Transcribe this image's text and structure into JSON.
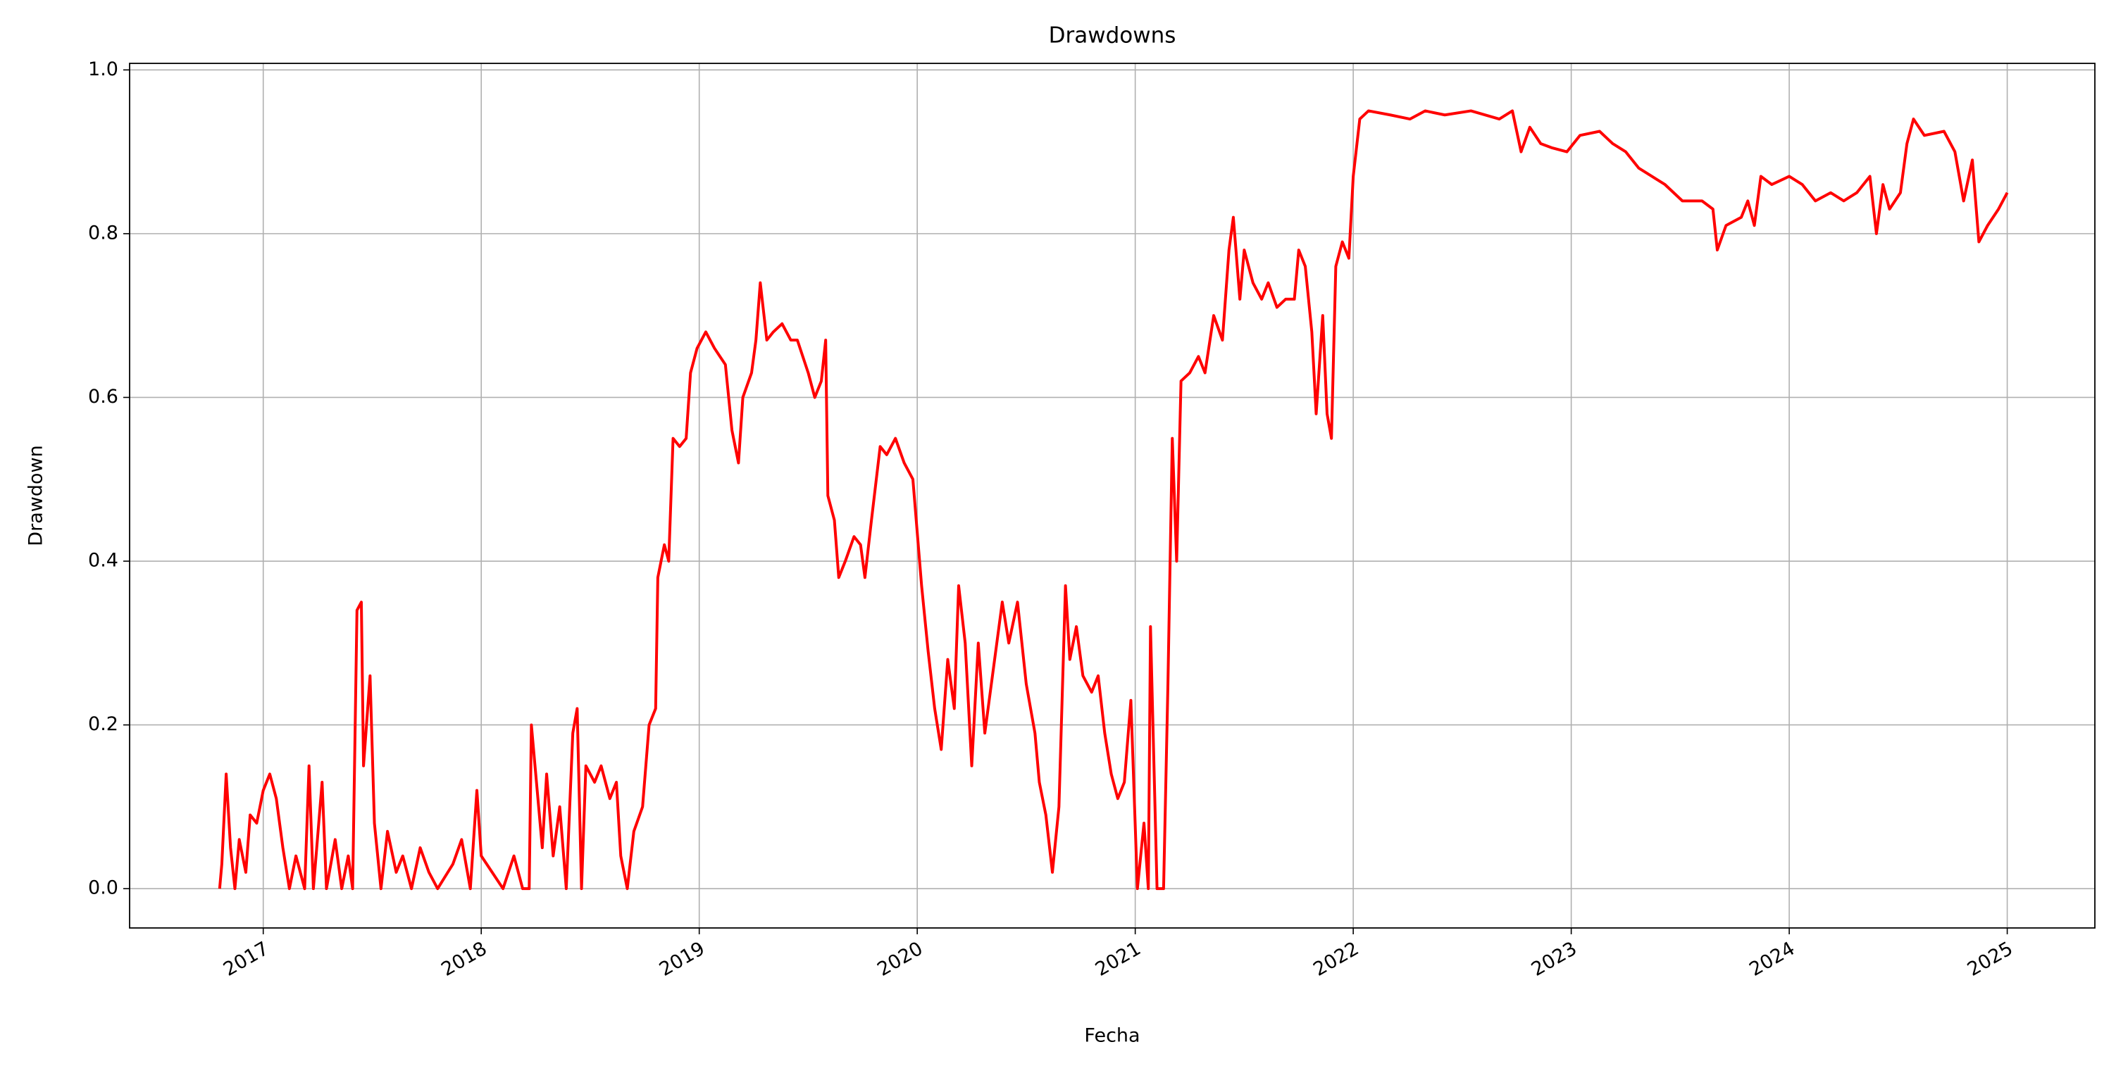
{
  "chart_data": {
    "type": "line",
    "title": "Drawdowns",
    "x_label": "Fecha",
    "y_label": "Drawdown",
    "color": "#ff0000",
    "grid": true,
    "xlim": [
      2016.387,
      2025.402
    ],
    "xticks": [
      2017,
      2018,
      2019,
      2020,
      2021,
      2022,
      2023,
      2024,
      2025
    ],
    "ylim": [
      -0.048,
      1.008
    ],
    "yticks": [
      {
        "value": 0,
        "label": "0.0"
      },
      0.2,
      0.4,
      0.6,
      0.8,
      {
        "value": 1,
        "label": "1.0"
      }
    ],
    "x": [
      2016.8,
      2016.81,
      2016.83,
      2016.85,
      2016.87,
      2016.89,
      2016.92,
      2016.94,
      2016.97,
      2017.0,
      2017.03,
      2017.06,
      2017.09,
      2017.12,
      2017.15,
      2017.19,
      2017.21,
      2017.23,
      2017.27,
      2017.29,
      2017.33,
      2017.36,
      2017.39,
      2017.41,
      2017.43,
      2017.45,
      2017.46,
      2017.49,
      2017.51,
      2017.54,
      2017.57,
      2017.61,
      2017.64,
      2017.68,
      2017.72,
      2017.76,
      2017.8,
      2017.87,
      2017.91,
      2017.95,
      2017.98,
      2018.0,
      2018.05,
      2018.1,
      2018.15,
      2018.19,
      2018.22,
      2018.23,
      2018.25,
      2018.28,
      2018.3,
      2018.33,
      2018.36,
      2018.39,
      2018.42,
      2018.44,
      2018.46,
      2018.48,
      2018.52,
      2018.55,
      2018.59,
      2018.62,
      2018.64,
      2018.67,
      2018.7,
      2018.74,
      2018.77,
      2018.8,
      2018.81,
      2018.84,
      2018.86,
      2018.88,
      2018.91,
      2018.94,
      2018.96,
      2018.99,
      2019.03,
      2019.07,
      2019.12,
      2019.15,
      2019.18,
      2019.2,
      2019.24,
      2019.26,
      2019.28,
      2019.31,
      2019.34,
      2019.38,
      2019.42,
      2019.45,
      2019.5,
      2019.53,
      2019.56,
      2019.58,
      2019.59,
      2019.62,
      2019.64,
      2019.67,
      2019.71,
      2019.74,
      2019.76,
      2019.79,
      2019.83,
      2019.86,
      2019.9,
      2019.94,
      2019.98,
      2020.02,
      2020.05,
      2020.08,
      2020.11,
      2020.14,
      2020.17,
      2020.19,
      2020.22,
      2020.25,
      2020.28,
      2020.31,
      2020.35,
      2020.39,
      2020.42,
      2020.46,
      2020.5,
      2020.54,
      2020.56,
      2020.59,
      2020.62,
      2020.65,
      2020.68,
      2020.7,
      2020.73,
      2020.76,
      2020.8,
      2020.83,
      2020.86,
      2020.89,
      2020.92,
      2020.95,
      2020.98,
      2021.01,
      2021.04,
      2021.06,
      2021.07,
      2021.1,
      2021.13,
      2021.15,
      2021.17,
      2021.19,
      2021.21,
      2021.25,
      2021.29,
      2021.32,
      2021.36,
      2021.4,
      2021.43,
      2021.45,
      2021.48,
      2021.5,
      2021.54,
      2021.58,
      2021.61,
      2021.65,
      2021.69,
      2021.73,
      2021.75,
      2021.78,
      2021.81,
      2021.83,
      2021.86,
      2021.88,
      2021.9,
      2021.92,
      2021.95,
      2021.98,
      2022.0,
      2022.03,
      2022.07,
      2022.17,
      2022.26,
      2022.33,
      2022.42,
      2022.54,
      2022.67,
      2022.73,
      2022.77,
      2022.81,
      2022.86,
      2022.91,
      2022.98,
      2023.04,
      2023.13,
      2023.19,
      2023.25,
      2023.31,
      2023.37,
      2023.43,
      2023.51,
      2023.6,
      2023.65,
      2023.67,
      2023.71,
      2023.78,
      2023.81,
      2023.84,
      2023.87,
      2023.92,
      2024.0,
      2024.06,
      2024.12,
      2024.19,
      2024.25,
      2024.31,
      2024.37,
      2024.4,
      2024.43,
      2024.46,
      2024.51,
      2024.54,
      2024.57,
      2024.62,
      2024.71,
      2024.76,
      2024.8,
      2024.84,
      2024.87,
      2024.91,
      2024.96,
      2025.0
    ],
    "values": [
      0,
      0.03,
      0.14,
      0.05,
      0,
      0.06,
      0.02,
      0.09,
      0.08,
      0.12,
      0.14,
      0.11,
      0.05,
      0,
      0.04,
      0,
      0.15,
      0,
      0.13,
      0,
      0.06,
      0,
      0.04,
      0,
      0.34,
      0.35,
      0.15,
      0.26,
      0.08,
      0,
      0.07,
      0.02,
      0.04,
      0,
      0.05,
      0.02,
      0,
      0.03,
      0.06,
      0,
      0.12,
      0.04,
      0.02,
      0,
      0.04,
      0,
      0,
      0.2,
      0.14,
      0.05,
      0.14,
      0.04,
      0.1,
      0,
      0.19,
      0.22,
      0,
      0.15,
      0.13,
      0.15,
      0.11,
      0.13,
      0.04,
      0,
      0.07,
      0.1,
      0.2,
      0.22,
      0.38,
      0.42,
      0.4,
      0.55,
      0.54,
      0.55,
      0.63,
      0.66,
      0.68,
      0.66,
      0.64,
      0.56,
      0.52,
      0.6,
      0.63,
      0.67,
      0.74,
      0.67,
      0.68,
      0.69,
      0.67,
      0.67,
      0.63,
      0.6,
      0.62,
      0.67,
      0.48,
      0.45,
      0.38,
      0.4,
      0.43,
      0.42,
      0.38,
      0.45,
      0.54,
      0.53,
      0.55,
      0.52,
      0.5,
      0.37,
      0.29,
      0.22,
      0.17,
      0.28,
      0.22,
      0.37,
      0.3,
      0.15,
      0.3,
      0.19,
      0.27,
      0.35,
      0.3,
      0.35,
      0.25,
      0.19,
      0.13,
      0.09,
      0.02,
      0.1,
      0.37,
      0.28,
      0.32,
      0.26,
      0.24,
      0.26,
      0.19,
      0.14,
      0.11,
      0.13,
      0.23,
      0,
      0.08,
      0,
      0.32,
      0,
      0,
      0.25,
      0.55,
      0.4,
      0.62,
      0.63,
      0.65,
      0.63,
      0.7,
      0.67,
      0.78,
      0.82,
      0.72,
      0.78,
      0.74,
      0.72,
      0.74,
      0.71,
      0.72,
      0.72,
      0.78,
      0.76,
      0.68,
      0.58,
      0.7,
      0.58,
      0.55,
      0.76,
      0.79,
      0.77,
      0.87,
      0.94,
      0.95,
      0.945,
      0.94,
      0.95,
      0.945,
      0.95,
      0.94,
      0.95,
      0.9,
      0.93,
      0.91,
      0.905,
      0.9,
      0.92,
      0.925,
      0.91,
      0.9,
      0.88,
      0.87,
      0.86,
      0.84,
      0.84,
      0.83,
      0.78,
      0.81,
      0.82,
      0.84,
      0.81,
      0.87,
      0.86,
      0.87,
      0.86,
      0.84,
      0.85,
      0.84,
      0.85,
      0.87,
      0.8,
      0.86,
      0.83,
      0.85,
      0.91,
      0.94,
      0.92,
      0.925,
      0.9,
      0.84,
      0.89,
      0.79,
      0.81,
      0.83,
      0.85
    ]
  }
}
